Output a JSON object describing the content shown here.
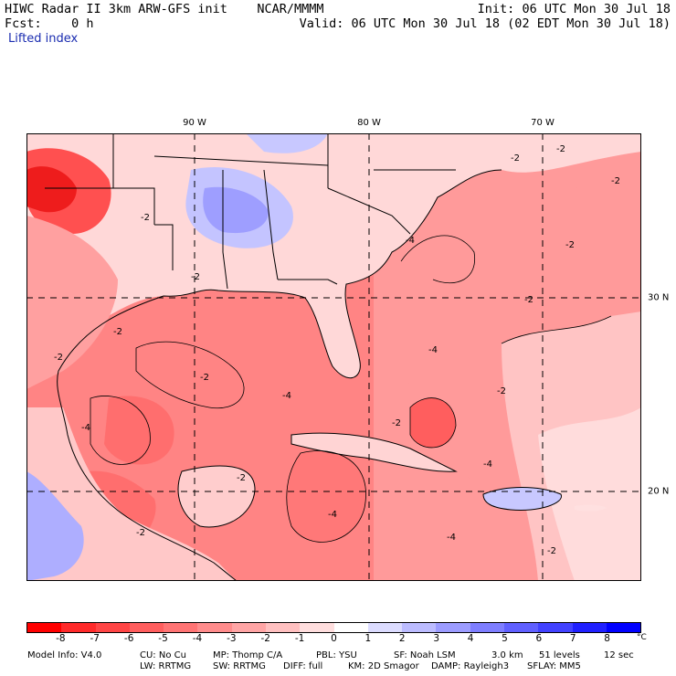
{
  "header": {
    "line1_left": "HIWC Radar II 3km ARW-GFS init    NCAR/MMMM",
    "line2_left": "Fcst:    0 h",
    "line1_right": "Init: 06 UTC Mon 30 Jul 18",
    "line2_right": "Valid: 06 UTC Mon 30 Jul 18 (02 EDT Mon 30 Jul 18)",
    "field_name": "Lifted index"
  },
  "map": {
    "lon_labels": [
      "90 W",
      "80 W",
      "70 W"
    ],
    "lat_labels": [
      "30 N",
      "20 N"
    ],
    "contour_labels": [
      "-2",
      "-4"
    ]
  },
  "colorbar": {
    "ticks": [
      "-8",
      "-7",
      "-6",
      "-5",
      "-4",
      "-3",
      "-2",
      "-1",
      "0",
      "1",
      "2",
      "3",
      "4",
      "5",
      "6",
      "7",
      "8"
    ],
    "unit": "°C",
    "colors": [
      "#ff0000",
      "#ff2a2a",
      "#ff4545",
      "#ff5e5e",
      "#ff7474",
      "#ff8c8c",
      "#ffa5a5",
      "#ffc0c0",
      "#ffdede",
      "#ffffff",
      "#dcdcff",
      "#bcbcff",
      "#9c9cff",
      "#7e7eff",
      "#6060ff",
      "#4242ff",
      "#2020ff",
      "#0000ff"
    ]
  },
  "footer": {
    "row1": [
      "Model Info: V4.0",
      "CU: No Cu",
      "MP: Thomp C/A",
      "PBL: YSU",
      "SF: Noah LSM",
      "3.0 km",
      "51 levels",
      "12 sec"
    ],
    "row2": [
      "LW: RRTMG",
      "SW: RRTMG",
      "DIFF: full",
      "KM: 2D Smagor",
      "DAMP: Rayleigh3",
      "SFLAY: MM5"
    ]
  }
}
